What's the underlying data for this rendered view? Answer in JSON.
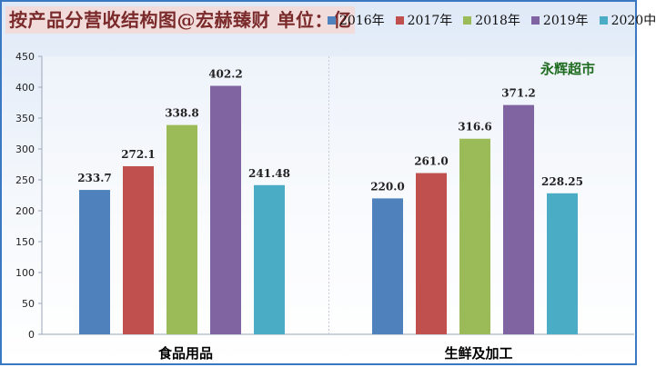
{
  "title": "按产品分营收结构图@宏赫臻财 单位：亿",
  "chart_data": {
    "type": "bar",
    "categories": [
      "食品用品",
      "生鲜及加工"
    ],
    "series": [
      {
        "name": "2016年",
        "color": "#4f81bd",
        "values": [
          233.7,
          220.0
        ],
        "labels": [
          "233.7",
          "220.0"
        ]
      },
      {
        "name": "2017年",
        "color": "#c0504d",
        "values": [
          272.1,
          261.0
        ],
        "labels": [
          "272.1",
          "261.0"
        ]
      },
      {
        "name": "2018年",
        "color": "#9bbb59",
        "values": [
          338.8,
          316.6
        ],
        "labels": [
          "338.8",
          "316.6"
        ]
      },
      {
        "name": "2019年",
        "color": "#8064a2",
        "values": [
          402.2,
          371.2
        ],
        "labels": [
          "402.2",
          "371.2"
        ]
      },
      {
        "name": "2020中",
        "color": "#4bacc6",
        "values": [
          241.48,
          228.25
        ],
        "labels": [
          "241.48",
          "228.25"
        ]
      }
    ],
    "yticks": [
      0,
      50,
      100,
      150,
      200,
      250,
      300,
      350,
      400,
      450
    ],
    "ylim": [
      0,
      450
    ],
    "grid": false,
    "legend_position": "top-right",
    "annotation": "永辉超市"
  }
}
